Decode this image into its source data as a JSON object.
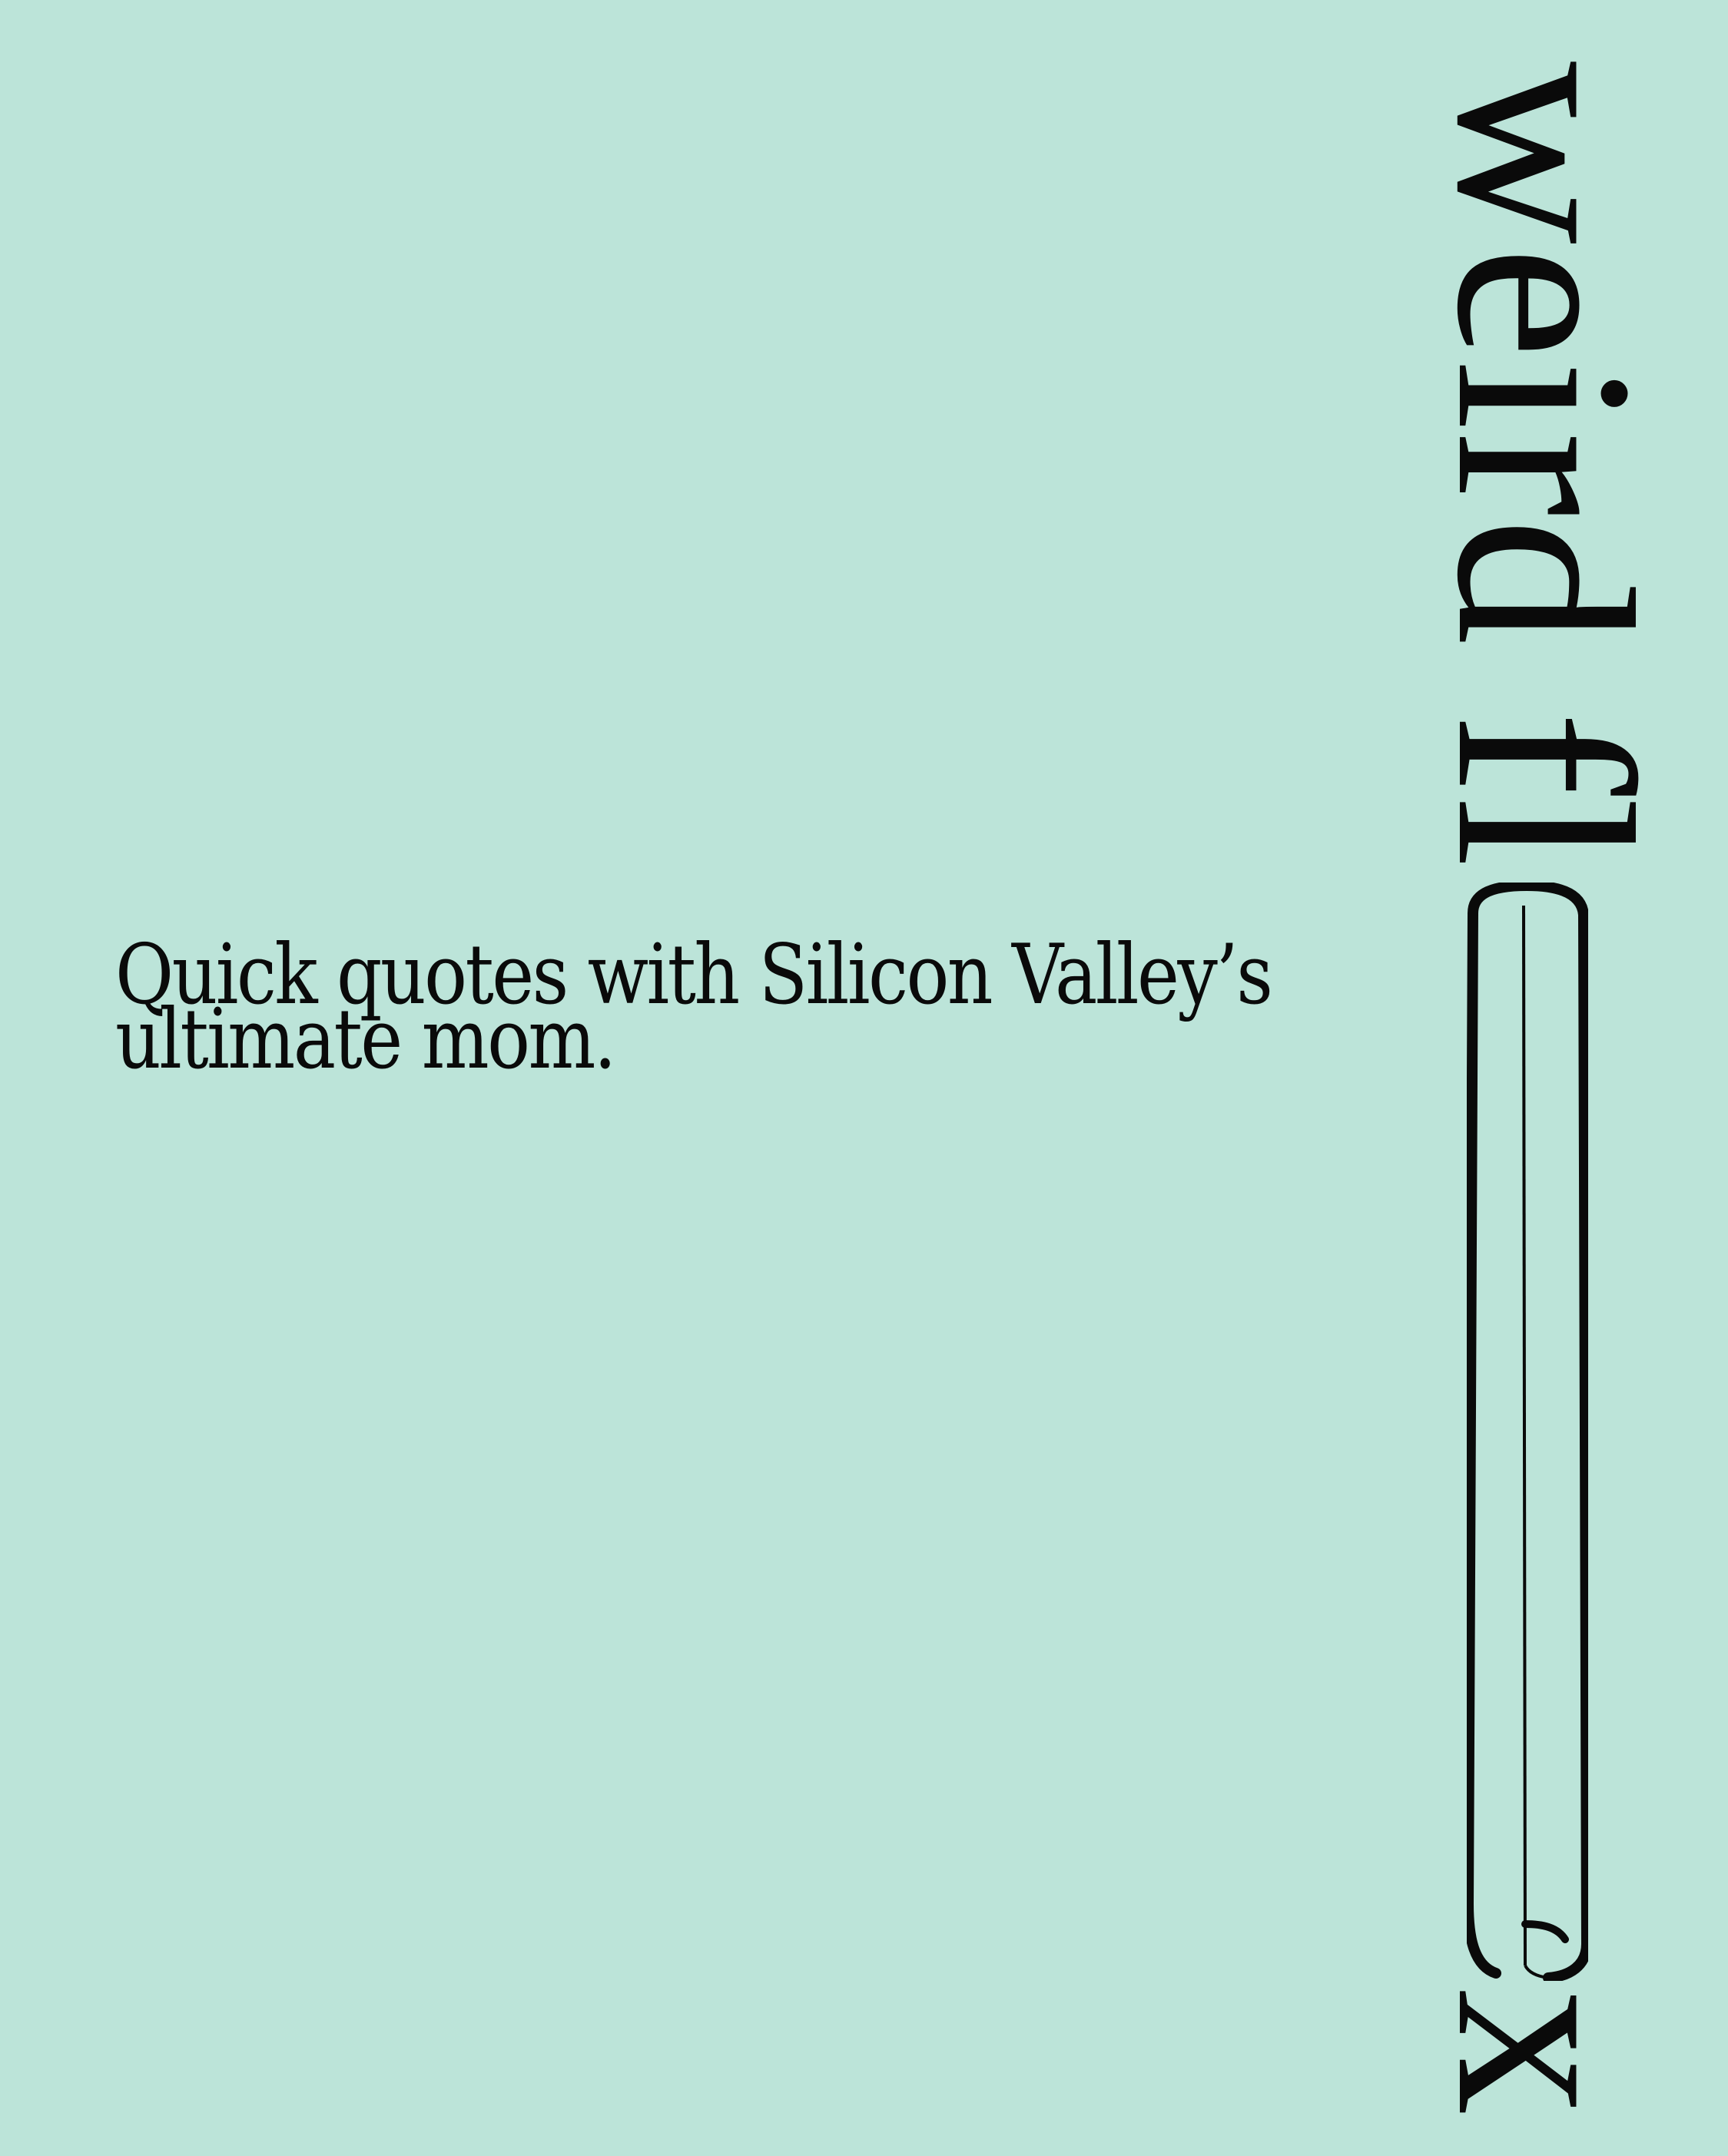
{
  "background_color": "#bce4d9",
  "text_color": "#0a0a0a",
  "tagline": {
    "line1": "Quick quotes with Silicon Valley’s",
    "line2": "ultimate mom."
  },
  "wordmark": {
    "part1": "weird fl",
    "part2": "x"
  }
}
